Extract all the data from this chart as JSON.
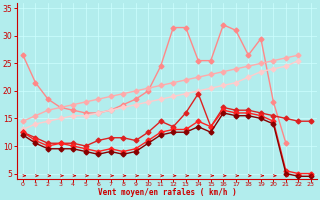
{
  "background_color": "#b2eded",
  "grid_color": "#ccffff",
  "xlabel": "Vent moyen/en rafales ( km/h )",
  "xlim": [
    -0.5,
    23.5
  ],
  "ylim": [
    4,
    36
  ],
  "yticks": [
    5,
    10,
    15,
    20,
    25,
    30,
    35
  ],
  "xticks": [
    0,
    1,
    2,
    3,
    4,
    5,
    6,
    7,
    8,
    9,
    10,
    11,
    12,
    13,
    14,
    15,
    16,
    17,
    18,
    19,
    20,
    21,
    22,
    23
  ],
  "series": [
    {
      "x": [
        0,
        1,
        2,
        3,
        4,
        5,
        6,
        7,
        8,
        9,
        10,
        11,
        12,
        13,
        14,
        15,
        16,
        17,
        18,
        19,
        20,
        21
      ],
      "y": [
        26.5,
        21.5,
        18.5,
        17.0,
        16.5,
        16.0,
        16.0,
        16.5,
        17.5,
        18.5,
        20.0,
        24.5,
        31.5,
        31.5,
        25.5,
        25.5,
        32.0,
        31.0,
        26.5,
        29.5,
        18.0,
        10.5
      ],
      "color": "#ff8888",
      "lw": 1.0,
      "marker": "D",
      "ms": 2.5
    },
    {
      "x": [
        0,
        1,
        2,
        3,
        4,
        5,
        6,
        7,
        8,
        9,
        10,
        11,
        12,
        13,
        14,
        15,
        16,
        17,
        18,
        19,
        20,
        21,
        22
      ],
      "y": [
        14.5,
        15.5,
        16.5,
        17.0,
        17.5,
        18.0,
        18.5,
        19.0,
        19.5,
        20.0,
        20.5,
        21.0,
        21.5,
        22.0,
        22.5,
        23.0,
        23.5,
        24.0,
        24.5,
        25.0,
        25.5,
        26.0,
        26.5
      ],
      "color": "#ffaaaa",
      "lw": 1.0,
      "marker": "D",
      "ms": 2.5
    },
    {
      "x": [
        0,
        1,
        2,
        3,
        4,
        5,
        6,
        7,
        8,
        9,
        10,
        11,
        12,
        13,
        14,
        15,
        16,
        17,
        18,
        19,
        20,
        21,
        22
      ],
      "y": [
        13.0,
        14.0,
        14.5,
        15.0,
        15.5,
        15.5,
        16.0,
        16.5,
        17.0,
        17.5,
        18.0,
        18.5,
        19.0,
        19.5,
        20.0,
        20.5,
        21.0,
        21.5,
        22.5,
        23.5,
        24.0,
        24.5,
        25.5
      ],
      "color": "#ffcccc",
      "lw": 1.0,
      "marker": "D",
      "ms": 2.5
    },
    {
      "x": [
        0,
        1,
        2,
        3,
        4,
        5,
        6,
        7,
        8,
        9,
        10,
        11,
        12,
        13,
        14,
        15,
        16,
        17,
        18,
        19,
        20,
        21,
        22,
        23
      ],
      "y": [
        12.5,
        11.5,
        10.5,
        10.5,
        10.5,
        10.0,
        11.0,
        11.5,
        11.5,
        11.0,
        12.5,
        14.5,
        13.5,
        16.0,
        19.5,
        13.5,
        17.0,
        16.5,
        16.5,
        16.0,
        15.5,
        15.0,
        14.5,
        14.5
      ],
      "color": "#dd2222",
      "lw": 1.0,
      "marker": "D",
      "ms": 2.5
    },
    {
      "x": [
        0,
        1,
        2,
        3,
        4,
        5,
        6,
        7,
        8,
        9,
        10,
        11,
        12,
        13,
        14,
        15,
        16,
        17,
        18,
        19,
        20,
        21,
        22,
        23
      ],
      "y": [
        12.5,
        11.0,
        10.0,
        10.5,
        10.0,
        9.5,
        9.0,
        9.5,
        9.0,
        9.5,
        11.0,
        12.5,
        13.0,
        13.0,
        14.5,
        13.5,
        16.5,
        16.0,
        16.0,
        15.5,
        14.5,
        5.5,
        5.0,
        5.0
      ],
      "color": "#ff2222",
      "lw": 1.0,
      "marker": "D",
      "ms": 2.5
    },
    {
      "x": [
        0,
        1,
        2,
        3,
        4,
        5,
        6,
        7,
        8,
        9,
        10,
        11,
        12,
        13,
        14,
        15,
        16,
        17,
        18,
        19,
        20,
        21,
        22,
        23
      ],
      "y": [
        12.0,
        10.5,
        9.5,
        9.5,
        9.5,
        9.0,
        8.5,
        9.0,
        8.5,
        9.0,
        10.5,
        12.0,
        12.5,
        12.5,
        13.5,
        12.5,
        16.0,
        15.5,
        15.5,
        15.0,
        14.0,
        5.0,
        4.5,
        4.5
      ],
      "color": "#880000",
      "lw": 1.0,
      "marker": "D",
      "ms": 2.5
    }
  ],
  "arrow_color": "#cc0000",
  "tick_color": "#cc0000",
  "xlabel_color": "#cc0000",
  "spine_color": "#cc0000"
}
